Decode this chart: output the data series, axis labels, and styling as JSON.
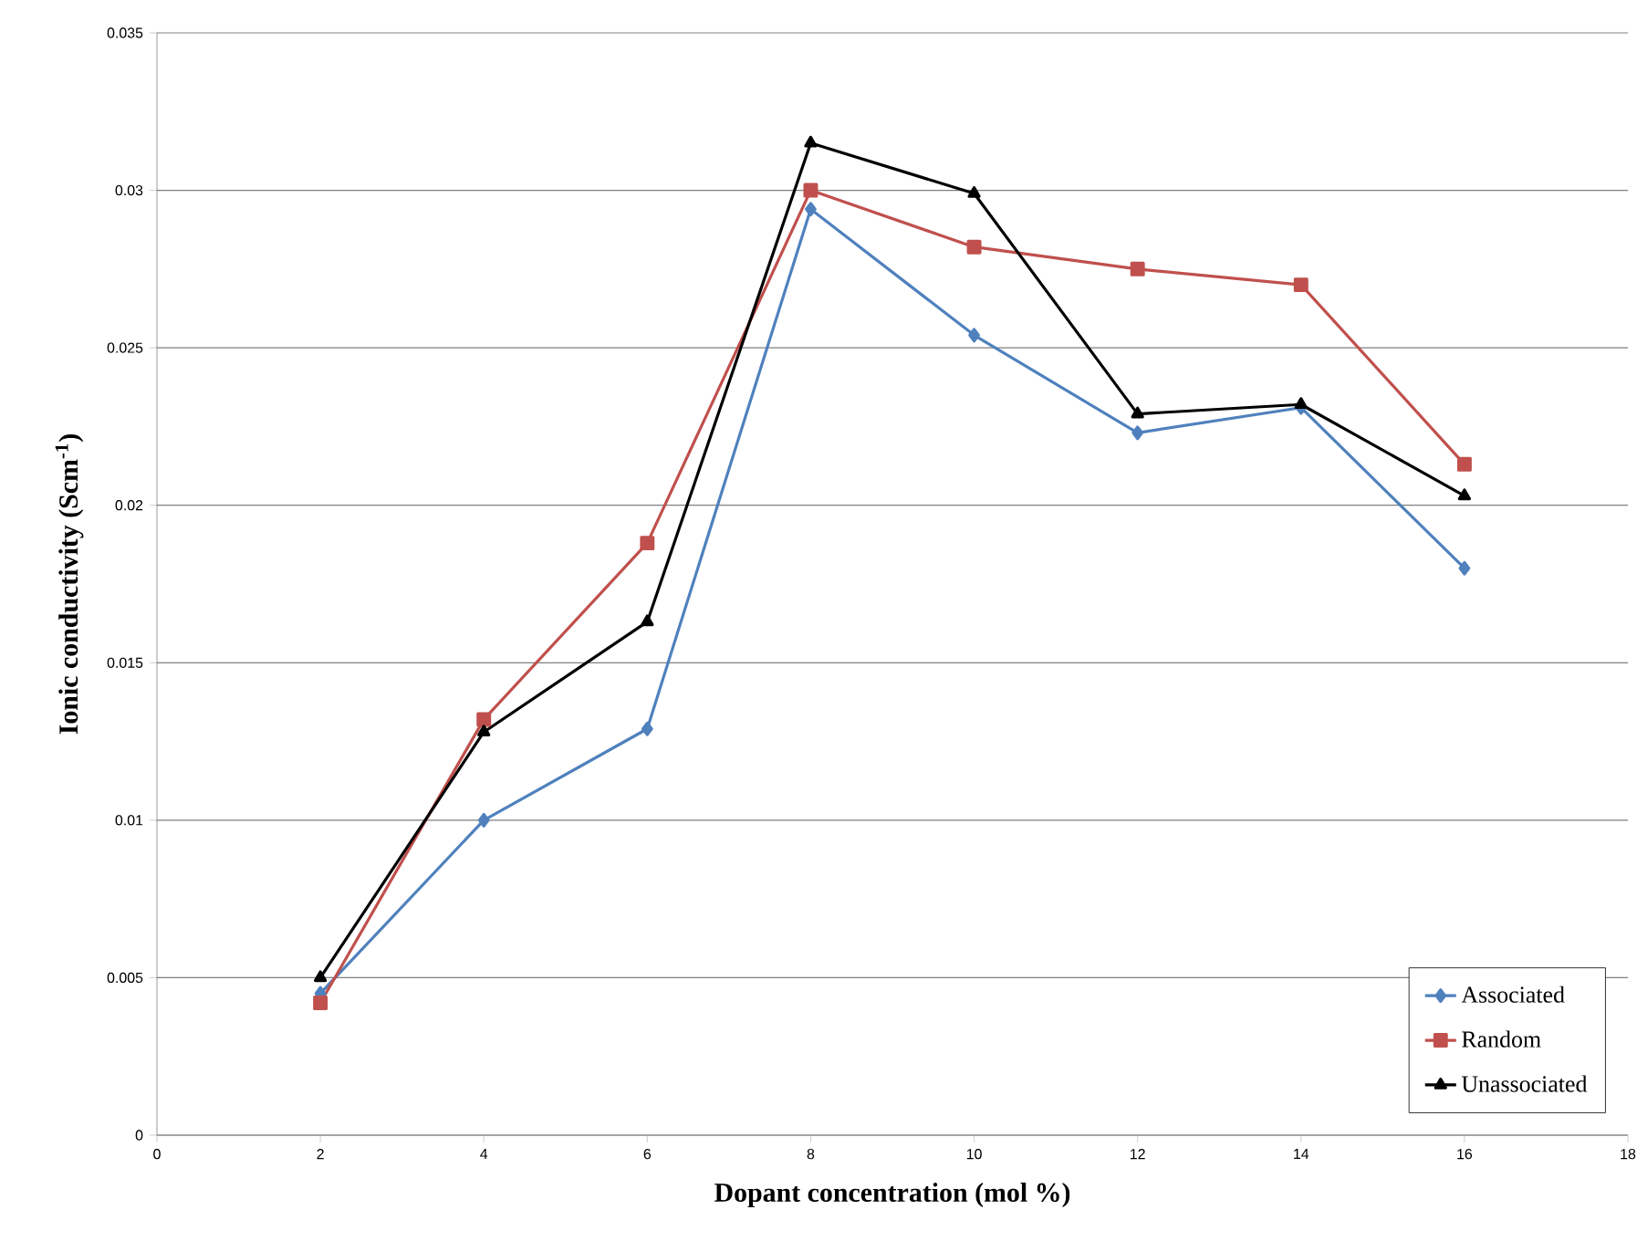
{
  "chart_data": {
    "type": "line",
    "xlabel": "Dopant concentration (mol %)",
    "ylabel": "Ionic conductivity (Scm$^{-1}$)",
    "x": [
      2,
      4,
      6,
      8,
      10,
      12,
      14,
      16
    ],
    "series": [
      {
        "name": "Associated",
        "color": "#4f81bd",
        "marker": "diamond",
        "values": [
          0.0045,
          0.01,
          0.0129,
          0.0294,
          0.0254,
          0.0223,
          0.0231,
          0.018
        ]
      },
      {
        "name": "Random",
        "color": "#c0504d",
        "marker": "square",
        "values": [
          0.0042,
          0.0132,
          0.0188,
          0.03,
          0.0282,
          0.0275,
          0.027,
          0.0213
        ]
      },
      {
        "name": "Unassociated",
        "color": "#000000",
        "marker": "triangle",
        "values": [
          0.005,
          0.0128,
          0.0163,
          0.0315,
          0.0299,
          0.0229,
          0.0232,
          0.0203
        ]
      }
    ],
    "xlim": [
      0,
      18
    ],
    "xticks": [
      0,
      2,
      4,
      6,
      8,
      10,
      12,
      14,
      16,
      18
    ],
    "ylim": [
      0,
      0.035
    ],
    "yticks": [
      0,
      0.005,
      0.01,
      0.015,
      0.02,
      0.025,
      0.03,
      0.035
    ],
    "grid": "y",
    "legend": "bottom right",
    "line_style": "solid"
  }
}
